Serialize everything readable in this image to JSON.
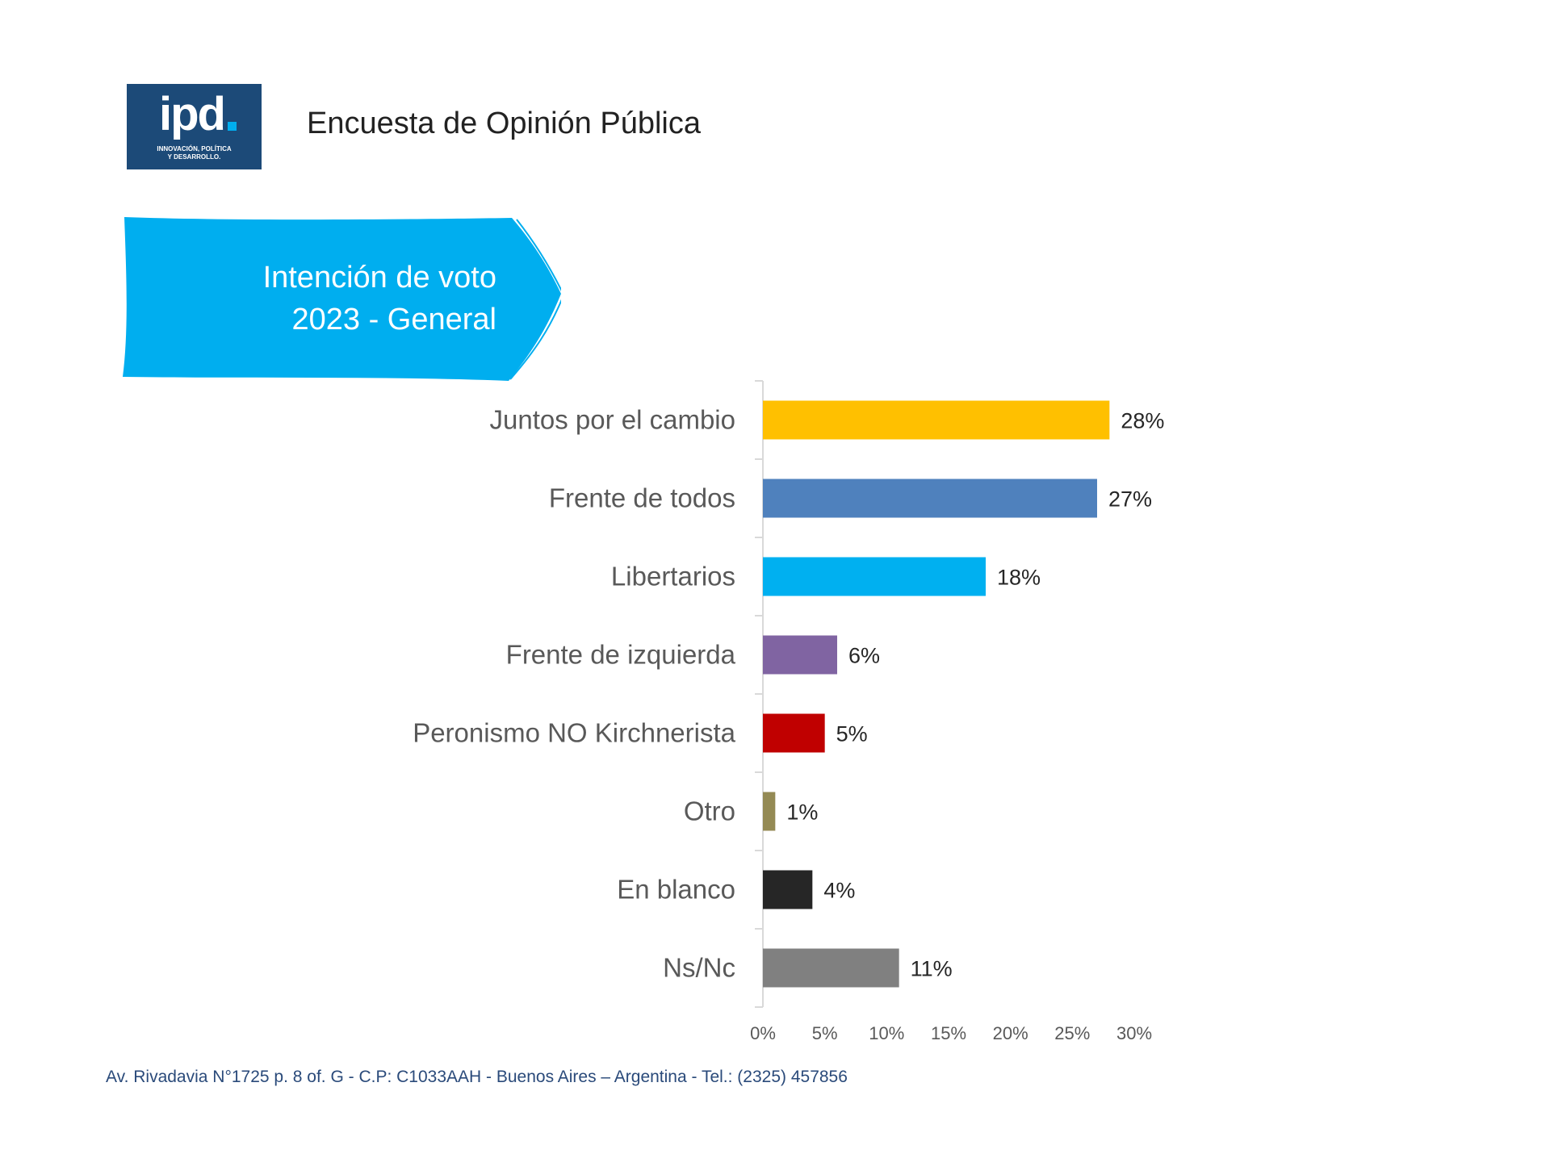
{
  "header": {
    "logo_text": "ipd",
    "logo_tagline_1": "INNOVACIÓN, POLÍTICA",
    "logo_tagline_2": "Y DESARROLLO.",
    "title": "Encuesta de Opinión Pública"
  },
  "banner": {
    "line1": "Intención de voto",
    "line2": "2023 - General",
    "color": "#00aeef"
  },
  "chart_data": {
    "type": "bar",
    "orientation": "horizontal",
    "categories": [
      "Juntos por el cambio",
      "Frente de todos",
      "Libertarios",
      "Frente de izquierda",
      "Peronismo NO Kirchnerista",
      "Otro",
      "En blanco",
      "Ns/Nc"
    ],
    "values": [
      28,
      27,
      18,
      6,
      5,
      1,
      4,
      11
    ],
    "data_labels": [
      "28%",
      "27%",
      "18%",
      "6%",
      "5%",
      "1%",
      "4%",
      "11%"
    ],
    "colors": [
      "#ffc000",
      "#4f81bd",
      "#00b0f0",
      "#8064a2",
      "#c00000",
      "#948a54",
      "#262626",
      "#808080"
    ],
    "x_ticks": [
      "0%",
      "5%",
      "10%",
      "15%",
      "20%",
      "25%",
      "30%"
    ],
    "xlim": [
      0,
      30
    ],
    "grid": false
  },
  "footer": {
    "address": "Av. Rivadavia N°1725 p. 8 of. G - C.P: C1033AAH - Buenos Aires – Argentina - Tel.: (2325) 457856"
  }
}
